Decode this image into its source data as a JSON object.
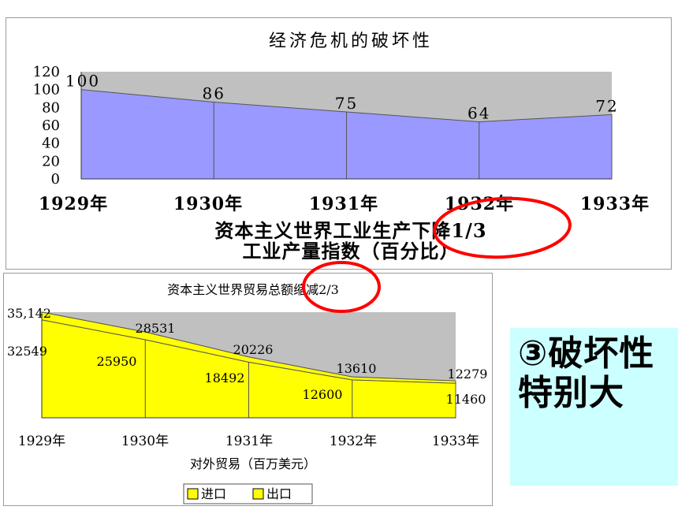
{
  "chart_data": [
    {
      "type": "area",
      "title": "经济危机的破坏性",
      "categories": [
        "1929年",
        "1930年",
        "1931年",
        "1932年",
        "1933年"
      ],
      "values": [
        100,
        86,
        75,
        64,
        72
      ],
      "data_labels": [
        "100",
        "86",
        "75",
        "64",
        "72"
      ],
      "y_ticks": [
        "120",
        "100",
        "80",
        "60",
        "40",
        "20",
        "0"
      ],
      "ylim": [
        0,
        120
      ],
      "xlabel_line1": "资本主义世界工业生产下降1/3",
      "xlabel_line2": "工业产量指数（百分比）",
      "colors": {
        "fill": "#9999ff",
        "background": "#c0c0c0"
      }
    },
    {
      "type": "area",
      "title": "资本主义世界贸易总额缩减2/3",
      "categories": [
        "1929年",
        "1930年",
        "1931年",
        "1932年",
        "1933年"
      ],
      "series": [
        {
          "name": "进口",
          "values": [
            35142,
            28531,
            20226,
            13610,
            12279
          ],
          "labels": [
            "35,142",
            "28531",
            "20226",
            "13610",
            "12279"
          ]
        },
        {
          "name": "出口",
          "values": [
            32549,
            25950,
            18492,
            12600,
            11460
          ],
          "labels": [
            "32549",
            "25950",
            "18492",
            "12600",
            "11460"
          ]
        }
      ],
      "xlabel": "对外贸易（百万美元）",
      "legend": {
        "items": [
          "进口",
          "出口"
        ],
        "position": "bottom"
      },
      "colors": {
        "import": "#ffff00",
        "export": "#ffff00",
        "background": "#c0c0c0"
      }
    }
  ],
  "callout": {
    "line1": "③破坏性",
    "line2": "特别大"
  },
  "annotations": {
    "color": "#ff0000"
  }
}
